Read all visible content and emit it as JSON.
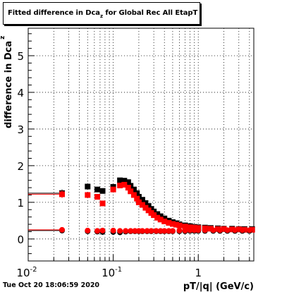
{
  "title": {
    "prefix": "Fitted difference in Dca",
    "subscript": "z",
    "suffix": " for Global Rec All EtapT"
  },
  "footer": "Tue Oct 20 18:06:59 2020",
  "chart_data": {
    "type": "scatter",
    "xlabel": "pT/|q| (GeV/c)",
    "ylabel": "difference in Dca",
    "ylabel_sub": "z",
    "x_scale": "log",
    "xlim": [
      0.01,
      4.5
    ],
    "ylim": [
      -0.6,
      5.75
    ],
    "grid": true,
    "x_ticks": [
      {
        "value": 0.01,
        "base": "10",
        "exp": "-2"
      },
      {
        "value": 0.1,
        "base": "10",
        "exp": "-1"
      },
      {
        "value": 1,
        "base": "1",
        "exp": ""
      }
    ],
    "y_ticks": [
      "0",
      "1",
      "2",
      "3",
      "4",
      "5"
    ],
    "colors": {
      "black": "#000000",
      "red": "#ff0000"
    },
    "series": [
      {
        "color": "#000000",
        "marker": "square",
        "x": [
          0.025,
          0.05,
          0.065,
          0.075,
          0.1,
          0.12,
          0.135,
          0.15,
          0.16,
          0.175,
          0.19,
          0.2,
          0.22,
          0.24,
          0.26,
          0.28,
          0.3,
          0.33,
          0.36,
          0.4,
          0.45,
          0.5,
          0.55,
          0.6,
          0.7,
          0.8,
          0.9,
          1.0,
          1.2,
          1.4,
          1.7,
          2.0,
          2.5,
          3.0,
          3.5,
          4.3
        ],
        "y": [
          1.25,
          1.43,
          1.35,
          1.31,
          1.42,
          1.6,
          1.59,
          1.55,
          1.45,
          1.35,
          1.25,
          1.15,
          1.07,
          0.98,
          0.9,
          0.82,
          0.75,
          0.68,
          0.62,
          0.56,
          0.5,
          0.46,
          0.43,
          0.4,
          0.37,
          0.35,
          0.33,
          0.32,
          0.31,
          0.3,
          0.29,
          0.28,
          0.28,
          0.27,
          0.27,
          0.27
        ],
        "yerr": [
          0.1,
          0.08,
          0.07,
          0.06,
          0.06,
          0.05,
          0.04,
          0.03,
          0.03,
          0.02,
          0.02,
          0.02,
          0.02,
          0.02,
          0.02,
          0.02,
          0.02,
          0.02,
          0.02,
          0.02,
          0.02,
          0.02,
          0.02,
          0.02,
          0.02,
          0.02,
          0.02,
          0.02,
          0.02,
          0.02,
          0.02,
          0.02,
          0.02,
          0.02,
          0.02,
          0.02
        ]
      },
      {
        "color": "#ff0000",
        "marker": "square",
        "x": [
          0.025,
          0.05,
          0.065,
          0.075,
          0.1,
          0.12,
          0.135,
          0.15,
          0.16,
          0.175,
          0.19,
          0.2,
          0.22,
          0.24,
          0.26,
          0.28,
          0.3,
          0.33,
          0.36,
          0.4,
          0.45,
          0.5,
          0.55,
          0.6,
          0.7,
          0.8,
          0.9,
          1.0,
          1.2,
          1.4,
          1.7,
          2.0,
          2.5,
          3.0,
          3.5,
          4.3
        ],
        "y": [
          1.22,
          1.2,
          1.15,
          0.97,
          1.35,
          1.46,
          1.48,
          1.4,
          1.3,
          1.2,
          1.1,
          1.0,
          0.93,
          0.85,
          0.78,
          0.71,
          0.65,
          0.58,
          0.53,
          0.48,
          0.44,
          0.41,
          0.39,
          0.37,
          0.34,
          0.32,
          0.31,
          0.3,
          0.29,
          0.28,
          0.27,
          0.27,
          0.26,
          0.26,
          0.25,
          0.25
        ],
        "yerr": [
          0.1,
          0.08,
          0.07,
          0.06,
          0.06,
          0.05,
          0.04,
          0.03,
          0.03,
          0.02,
          0.02,
          0.02,
          0.02,
          0.02,
          0.02,
          0.02,
          0.02,
          0.02,
          0.02,
          0.02,
          0.02,
          0.02,
          0.02,
          0.02,
          0.02,
          0.02,
          0.02,
          0.02,
          0.02,
          0.02,
          0.02,
          0.02,
          0.02,
          0.02,
          0.02,
          0.02
        ]
      },
      {
        "color": "#000000",
        "marker": "circle",
        "x": [
          0.025,
          0.05,
          0.065,
          0.075,
          0.1,
          0.12,
          0.14,
          0.16,
          0.18,
          0.2,
          0.22,
          0.25,
          0.28,
          0.32,
          0.36,
          0.4,
          0.45,
          0.5,
          0.6,
          0.7,
          0.8,
          0.9,
          1.0,
          1.2,
          1.5,
          1.8,
          2.2,
          2.7,
          3.3,
          4.0
        ],
        "y": [
          0.23,
          0.21,
          0.2,
          0.19,
          0.19,
          0.18,
          0.2,
          0.21,
          0.21,
          0.21,
          0.21,
          0.21,
          0.21,
          0.21,
          0.21,
          0.21,
          0.21,
          0.21,
          0.21,
          0.21,
          0.22,
          0.22,
          0.22,
          0.22,
          0.22,
          0.22,
          0.22,
          0.22,
          0.22,
          0.22
        ],
        "yerr": [
          0.05,
          0.03,
          0.03,
          0.02,
          0.02,
          0.02,
          0.02,
          0.02,
          0.02,
          0.02,
          0.02,
          0.02,
          0.02,
          0.02,
          0.02,
          0.02,
          0.02,
          0.02,
          0.02,
          0.02,
          0.02,
          0.02,
          0.02,
          0.02,
          0.02,
          0.02,
          0.02,
          0.02,
          0.02,
          0.02
        ]
      },
      {
        "color": "#ff0000",
        "marker": "circle",
        "x": [
          0.025,
          0.05,
          0.065,
          0.075,
          0.1,
          0.12,
          0.14,
          0.16,
          0.18,
          0.2,
          0.22,
          0.25,
          0.28,
          0.32,
          0.36,
          0.4,
          0.45,
          0.5,
          0.6,
          0.7,
          0.8,
          0.9,
          1.0,
          1.2,
          1.5,
          1.8,
          2.2,
          2.7,
          3.3,
          4.0
        ],
        "y": [
          0.25,
          0.23,
          0.22,
          0.23,
          0.23,
          0.22,
          0.22,
          0.22,
          0.22,
          0.22,
          0.22,
          0.22,
          0.22,
          0.22,
          0.22,
          0.22,
          0.22,
          0.22,
          0.23,
          0.23,
          0.24,
          0.24,
          0.24,
          0.24,
          0.24,
          0.24,
          0.24,
          0.24,
          0.24,
          0.24
        ],
        "yerr": [
          0.05,
          0.03,
          0.03,
          0.02,
          0.02,
          0.02,
          0.02,
          0.02,
          0.02,
          0.02,
          0.02,
          0.02,
          0.02,
          0.02,
          0.02,
          0.02,
          0.02,
          0.02,
          0.02,
          0.02,
          0.02,
          0.02,
          0.02,
          0.02,
          0.02,
          0.02,
          0.02,
          0.02,
          0.02,
          0.02
        ]
      }
    ]
  }
}
